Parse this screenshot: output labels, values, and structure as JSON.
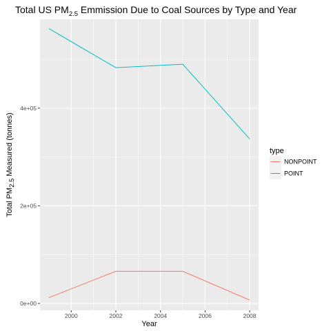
{
  "chart_data": {
    "type": "line",
    "title": {
      "before": "Total US PM",
      "subscript": "2.5",
      "after": " Emmission Due to Coal Sources by Type and Year"
    },
    "xlabel": "Year",
    "ylabel": {
      "before": "Total PM",
      "subscript": "2.5",
      "after": " Measured (tonnes)"
    },
    "x": [
      1999,
      2002,
      2005,
      2008
    ],
    "xlim": [
      1998.6,
      2008.4
    ],
    "xticks": [
      2000,
      2002,
      2004,
      2006,
      2008
    ],
    "xtick_labels": [
      "2000",
      "2002",
      "2004",
      "2006",
      "2008"
    ],
    "ylim": [
      -14000,
      582000
    ],
    "yticks": [
      0,
      200000,
      400000
    ],
    "ytick_labels": [
      "0e+00",
      "2e+05",
      "4e+05"
    ],
    "grid": true,
    "legend": {
      "title": "type",
      "placement": "right"
    },
    "series": [
      {
        "name": "NONPOINT",
        "color": "#F8766D",
        "values": [
          12000,
          66000,
          66000,
          7000
        ]
      },
      {
        "name": "POINT",
        "color": "#00BFC4",
        "values": [
          563000,
          483000,
          490000,
          337000
        ]
      }
    ]
  }
}
